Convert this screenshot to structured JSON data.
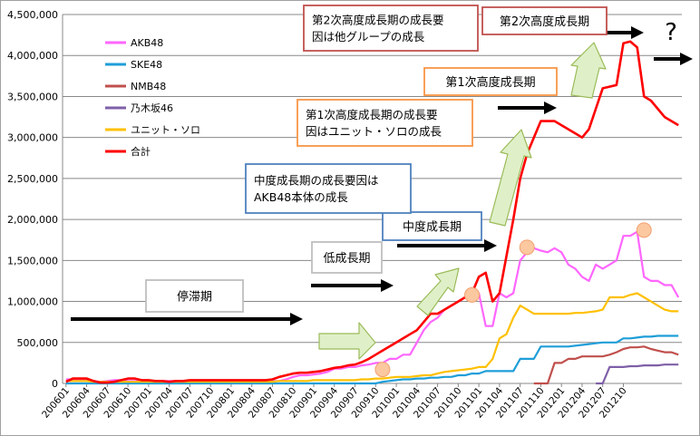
{
  "chart_data": {
    "type": "line",
    "title": "",
    "xlabel": "",
    "ylabel": "",
    "ylim": [
      0,
      4500000
    ],
    "y_ticks": [
      "0",
      "500,000",
      "1,000,000",
      "1,500,000",
      "2,000,000",
      "2,500,000",
      "3,000,000",
      "3,500,000",
      "4,000,000",
      "4,500,000"
    ],
    "grid": true,
    "legend_position": "left-inside",
    "x_tick_labels": [
      "200601",
      "200604",
      "200607",
      "200610",
      "200701",
      "200704",
      "200707",
      "200710",
      "200801",
      "200804",
      "200807",
      "200810",
      "200901",
      "200904",
      "200907",
      "200910",
      "201001",
      "201004",
      "201007",
      "201010",
      "201101",
      "201104",
      "201107",
      "201110",
      "201201",
      "201204",
      "201207",
      "201210"
    ],
    "series": [
      {
        "name": "AKB48",
        "color": "#ff66ff",
        "values": [
          50000,
          50000,
          50000,
          50000,
          30000,
          20000,
          30000,
          40000,
          40000,
          30000,
          30000,
          30000,
          30000,
          30000,
          30000,
          30000,
          30000,
          30000,
          30000,
          30000,
          30000,
          30000,
          30000,
          30000,
          30000,
          30000,
          30000,
          30000,
          30000,
          30000,
          30000,
          30000,
          50000,
          80000,
          100000,
          100000,
          110000,
          120000,
          140000,
          180000,
          180000,
          200000,
          200000,
          220000,
          230000,
          250000,
          250000,
          300000,
          300000,
          350000,
          350000,
          500000,
          650000,
          750000,
          800000,
          900000,
          950000,
          1000000,
          1050000,
          1100000,
          1100000,
          700000,
          700000,
          1100000,
          1050000,
          1100000,
          1500000,
          1600000,
          1650000,
          1620000,
          1600000,
          1650000,
          1600000,
          1450000,
          1400000,
          1300000,
          1250000,
          1450000,
          1400000,
          1450000,
          1500000,
          1800000,
          1800000,
          1850000,
          1300000,
          1250000,
          1250000,
          1200000,
          1200000,
          1050000
        ]
      },
      {
        "name": "SKE48",
        "color": "#1f9ed8",
        "values": [
          0,
          0,
          0,
          0,
          0,
          0,
          0,
          0,
          0,
          0,
          0,
          0,
          0,
          0,
          0,
          0,
          0,
          0,
          0,
          0,
          0,
          0,
          0,
          0,
          0,
          0,
          0,
          0,
          0,
          0,
          0,
          0,
          0,
          0,
          0,
          0,
          0,
          0,
          0,
          0,
          0,
          0,
          0,
          0,
          0,
          0,
          20000,
          30000,
          40000,
          50000,
          50000,
          60000,
          60000,
          70000,
          70000,
          80000,
          80000,
          100000,
          100000,
          120000,
          120000,
          150000,
          150000,
          150000,
          150000,
          150000,
          300000,
          300000,
          300000,
          450000,
          450000,
          450000,
          450000,
          450000,
          460000,
          470000,
          480000,
          490000,
          500000,
          500000,
          500000,
          550000,
          550000,
          560000,
          570000,
          570000,
          580000,
          580000,
          580000,
          580000
        ]
      },
      {
        "name": "NMB48",
        "color": "#c0504d",
        "values": [
          null,
          null,
          null,
          null,
          null,
          null,
          null,
          null,
          null,
          null,
          null,
          null,
          null,
          null,
          null,
          null,
          null,
          null,
          null,
          null,
          null,
          null,
          null,
          null,
          null,
          null,
          null,
          null,
          null,
          null,
          null,
          null,
          null,
          null,
          null,
          null,
          null,
          null,
          null,
          null,
          null,
          null,
          null,
          null,
          null,
          null,
          null,
          null,
          null,
          null,
          null,
          null,
          null,
          null,
          null,
          null,
          null,
          null,
          null,
          null,
          null,
          null,
          null,
          null,
          null,
          null,
          null,
          null,
          0,
          0,
          0,
          250000,
          250000,
          300000,
          300000,
          330000,
          330000,
          330000,
          330000,
          350000,
          380000,
          420000,
          440000,
          440000,
          450000,
          420000,
          400000,
          380000,
          380000,
          350000
        ]
      },
      {
        "name": "乃木坂46",
        "color": "#7f5fa8",
        "values": [
          null,
          null,
          null,
          null,
          null,
          null,
          null,
          null,
          null,
          null,
          null,
          null,
          null,
          null,
          null,
          null,
          null,
          null,
          null,
          null,
          null,
          null,
          null,
          null,
          null,
          null,
          null,
          null,
          null,
          null,
          null,
          null,
          null,
          null,
          null,
          null,
          null,
          null,
          null,
          null,
          null,
          null,
          null,
          null,
          null,
          null,
          null,
          null,
          null,
          null,
          null,
          null,
          null,
          null,
          null,
          null,
          null,
          null,
          null,
          null,
          null,
          null,
          null,
          null,
          null,
          null,
          null,
          null,
          null,
          null,
          null,
          null,
          null,
          null,
          null,
          null,
          null,
          0,
          0,
          200000,
          200000,
          200000,
          210000,
          210000,
          220000,
          220000,
          220000,
          230000,
          230000,
          230000
        ]
      },
      {
        "name": "ユニット・ソロ",
        "color": "#ffc000",
        "values": [
          30000,
          30000,
          30000,
          30000,
          20000,
          20000,
          20000,
          20000,
          20000,
          20000,
          20000,
          20000,
          20000,
          20000,
          20000,
          20000,
          20000,
          20000,
          20000,
          20000,
          20000,
          20000,
          20000,
          20000,
          20000,
          20000,
          20000,
          20000,
          20000,
          20000,
          20000,
          30000,
          30000,
          30000,
          30000,
          30000,
          40000,
          40000,
          40000,
          40000,
          40000,
          40000,
          40000,
          50000,
          50000,
          60000,
          60000,
          70000,
          80000,
          80000,
          80000,
          90000,
          100000,
          100000,
          120000,
          140000,
          150000,
          160000,
          170000,
          180000,
          200000,
          200000,
          300000,
          550000,
          600000,
          800000,
          950000,
          900000,
          850000,
          850000,
          850000,
          850000,
          850000,
          850000,
          860000,
          860000,
          870000,
          880000,
          900000,
          1050000,
          1050000,
          1050000,
          1080000,
          1100000,
          1050000,
          1000000,
          950000,
          900000,
          880000,
          880000
        ]
      },
      {
        "name": "合計",
        "color": "#ff0000",
        "values": [
          20000,
          60000,
          60000,
          60000,
          30000,
          10000,
          10000,
          20000,
          40000,
          60000,
          60000,
          40000,
          40000,
          30000,
          30000,
          20000,
          30000,
          30000,
          40000,
          40000,
          40000,
          40000,
          40000,
          40000,
          40000,
          40000,
          40000,
          40000,
          40000,
          40000,
          50000,
          80000,
          100000,
          120000,
          130000,
          130000,
          140000,
          150000,
          170000,
          190000,
          200000,
          220000,
          230000,
          260000,
          300000,
          350000,
          400000,
          450000,
          500000,
          550000,
          600000,
          650000,
          750000,
          850000,
          850000,
          900000,
          950000,
          1000000,
          1050000,
          1100000,
          1300000,
          1350000,
          1000000,
          1100000,
          1550000,
          2000000,
          2500000,
          2800000,
          3000000,
          3200000,
          3200000,
          3200000,
          3150000,
          3100000,
          3050000,
          3000000,
          3100000,
          3350000,
          3600000,
          3620000,
          3640000,
          4150000,
          4170000,
          4100000,
          3500000,
          3450000,
          3350000,
          3250000,
          3200000,
          3150000
        ]
      }
    ],
    "annotations": [
      {
        "id": "stagnation",
        "text": "停滞期"
      },
      {
        "id": "low-growth",
        "text": "低成長期"
      },
      {
        "id": "mid-growth",
        "text": "中度成長期"
      },
      {
        "id": "mid-growth-cause",
        "lines": [
          "中度成長期の成長要因は",
          "AKB48本体の成長"
        ]
      },
      {
        "id": "first-high-growth",
        "text": "第1次高度成長期"
      },
      {
        "id": "first-high-growth-cause",
        "lines": [
          "第1次高度成長期の成長要",
          "因はユニット・ソロの成長"
        ]
      },
      {
        "id": "second-high-growth",
        "text": "第2次高度成長期"
      },
      {
        "id": "second-high-growth-cause",
        "lines": [
          "第2次高度成長期の成長要",
          "因は他グループの成長"
        ]
      },
      {
        "id": "question",
        "text": "?"
      }
    ]
  }
}
